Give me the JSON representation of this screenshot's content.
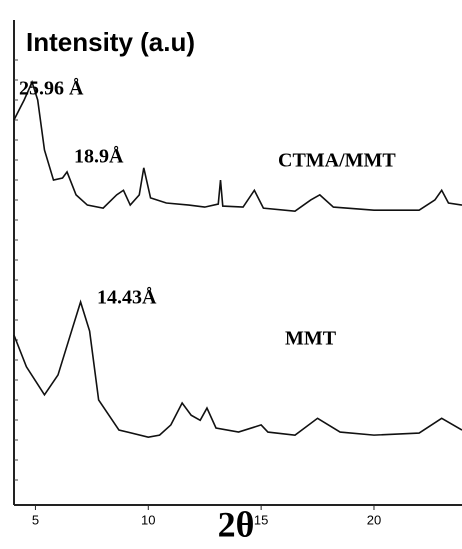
{
  "chart_data": {
    "type": "line",
    "title": "Intensity (a.u)",
    "xlabel": "2θ",
    "xlim": [
      4.05,
      23.9
    ],
    "xticks": [
      5,
      10,
      15,
      20
    ],
    "ylim": [
      5.9,
      100
    ],
    "annotations": [
      "25.96 Å",
      "18.9Å",
      "14.43Å"
    ],
    "series": [
      {
        "name": "CTMA/MMT",
        "color": "#111111",
        "x": [
          4.05,
          4.5,
          4.85,
          5.1,
          5.4,
          5.8,
          6.2,
          6.4,
          6.8,
          7.3,
          8.0,
          8.6,
          8.9,
          9.2,
          9.6,
          9.8,
          10.1,
          10.8,
          11.8,
          12.5,
          13.1,
          13.2,
          13.3,
          14.2,
          14.7,
          15.1,
          16.5,
          17.2,
          17.6,
          18.2,
          20,
          22,
          22.7,
          23.0,
          23.3,
          23.9
        ],
        "values": [
          81.4,
          85.3,
          88.8,
          85.3,
          75.5,
          69.6,
          70.0,
          71.2,
          66.7,
          64.7,
          64.1,
          66.7,
          67.6,
          64.7,
          66.7,
          72.0,
          66.1,
          65.1,
          64.7,
          64.3,
          64.9,
          69.6,
          64.5,
          64.3,
          67.6,
          64.1,
          63.5,
          65.7,
          66.7,
          64.3,
          63.7,
          63.7,
          65.7,
          67.6,
          65.1,
          64.7
        ]
      },
      {
        "name": "MMT",
        "color": "#111111",
        "x": [
          4.05,
          4.6,
          5.4,
          6.0,
          6.6,
          7.0,
          7.4,
          7.8,
          8.7,
          10.0,
          10.5,
          11.0,
          11.5,
          11.9,
          12.3,
          12.6,
          13.0,
          14.0,
          15.0,
          15.3,
          16.5,
          17.5,
          18.5,
          20,
          22,
          23,
          23.9
        ],
        "values": [
          39.2,
          33.0,
          27.5,
          31.4,
          40.0,
          45.7,
          40.0,
          26.5,
          20.6,
          19.2,
          19.6,
          21.6,
          25.9,
          23.5,
          22.5,
          24.9,
          21.0,
          20.2,
          21.6,
          20.2,
          19.6,
          22.9,
          20.2,
          19.6,
          20.0,
          22.9,
          20.6
        ]
      }
    ]
  }
}
